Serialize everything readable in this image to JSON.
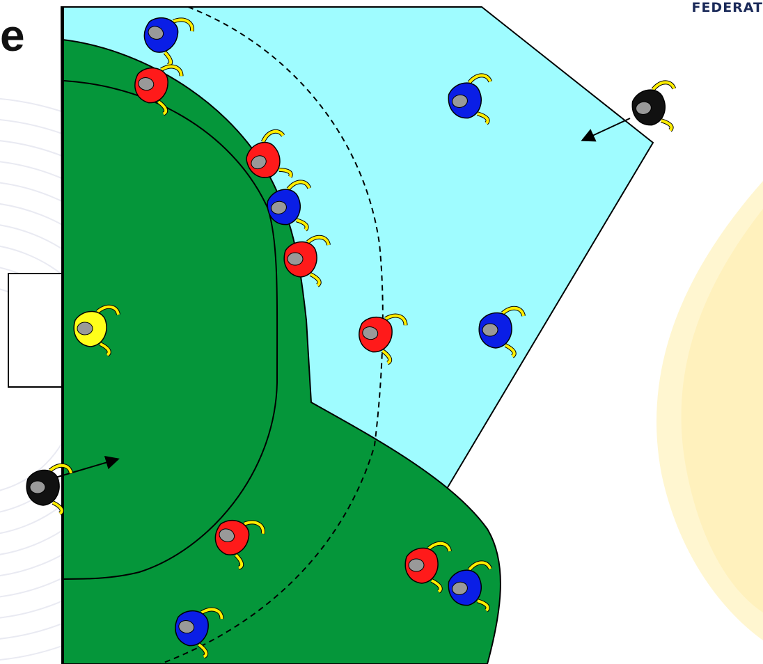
{
  "slide": {
    "title_fragment": "e",
    "logo_fragment": "FEDERAT"
  },
  "colors": {
    "background": "#ffffff",
    "shooting_zone": "#9ffcff",
    "circle_green": "#05963a",
    "red_team": "#ff1a1a",
    "blue_team": "#0a1ee6",
    "goalkeeper": "#ffff1a",
    "umpire": "#111111",
    "stick": "#ffee00",
    "head": "#999999"
  },
  "players": [
    {
      "team": "blue",
      "name": "blue-player"
    },
    {
      "team": "red",
      "name": "red-player"
    },
    {
      "team": "blue",
      "name": "blue-player"
    },
    {
      "team": "red",
      "name": "red-player"
    },
    {
      "team": "blue",
      "name": "blue-player"
    },
    {
      "team": "red",
      "name": "red-player"
    },
    {
      "team": "red",
      "name": "red-player"
    },
    {
      "team": "blue",
      "name": "blue-player"
    },
    {
      "team": "goalkeeper",
      "name": "goalkeeper"
    },
    {
      "team": "umpire",
      "name": "umpire"
    },
    {
      "team": "umpire",
      "name": "umpire"
    },
    {
      "team": "red",
      "name": "red-player"
    },
    {
      "team": "red",
      "name": "red-player"
    },
    {
      "team": "blue",
      "name": "blue-player"
    },
    {
      "team": "blue",
      "name": "blue-player"
    }
  ]
}
